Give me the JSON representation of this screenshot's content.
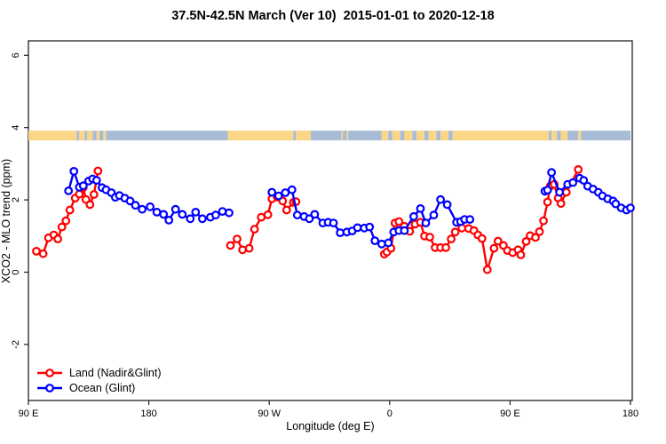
{
  "title": "37.5N-42.5N March (Ver 10)  2015-01-01 to 2020-12-18",
  "legend": {
    "items": [
      {
        "label": "Land (Nadir&Glint)",
        "color": "#ff0000"
      },
      {
        "label": "Ocean (Glint)",
        "color": "#0000ff"
      }
    ]
  },
  "chart_data": {
    "type": "line",
    "title": "37.5N-42.5N March (Ver 10)  2015-01-01 to 2020-12-18",
    "xlabel": "Longitude (deg E)",
    "ylabel": "XCO2 - MLO trend (ppm)",
    "grid": false,
    "legend_position": "bottom-left-inside",
    "x_axis": {
      "note": "longitude wraps eastward; axis position in deg east of map start (90E=90 ... 180=540)",
      "range": [
        90,
        540
      ],
      "ticks": [
        {
          "u": 90,
          "label": "90 E"
        },
        {
          "u": 180,
          "label": "180"
        },
        {
          "u": 270,
          "label": "90 W"
        },
        {
          "u": 360,
          "label": "0"
        },
        {
          "u": 450,
          "label": "90 E"
        },
        {
          "u": 540,
          "label": "180"
        }
      ]
    },
    "y_axis": {
      "range": [
        -3.55,
        6.4
      ],
      "ticks": [
        -2,
        0,
        2,
        4,
        6
      ]
    },
    "marker": {
      "shape": "open-circle",
      "radius": 3.8,
      "stroke_width": 2.2,
      "line_width": 2.4
    },
    "land_ocean_strip": {
      "y_value": 3.78,
      "land_color": "#fad688",
      "ocean_color": "#a8bcd8",
      "segments": [
        [
          90,
          126,
          "land"
        ],
        [
          126,
          128,
          "ocean"
        ],
        [
          128,
          132,
          "land"
        ],
        [
          132,
          134,
          "ocean"
        ],
        [
          134,
          138,
          "land"
        ],
        [
          138,
          141,
          "ocean"
        ],
        [
          141,
          143,
          "land"
        ],
        [
          143,
          146,
          "ocean"
        ],
        [
          146,
          148,
          "land"
        ],
        [
          148,
          239,
          "ocean"
        ],
        [
          239,
          288,
          "land"
        ],
        [
          288,
          290,
          "ocean"
        ],
        [
          290,
          301,
          "land"
        ],
        [
          301,
          324,
          "ocean"
        ],
        [
          324,
          325,
          "land"
        ],
        [
          325,
          328,
          "ocean"
        ],
        [
          328,
          329,
          "land"
        ],
        [
          329,
          354,
          "ocean"
        ],
        [
          354,
          359,
          "land"
        ],
        [
          359,
          362,
          "ocean"
        ],
        [
          362,
          368,
          "land"
        ],
        [
          368,
          371,
          "ocean"
        ],
        [
          371,
          377,
          "land"
        ],
        [
          377,
          380,
          "ocean"
        ],
        [
          380,
          386,
          "land"
        ],
        [
          386,
          389,
          "ocean"
        ],
        [
          389,
          395,
          "land"
        ],
        [
          395,
          398,
          "ocean"
        ],
        [
          398,
          404,
          "land"
        ],
        [
          404,
          407,
          "ocean"
        ],
        [
          407,
          479,
          "land"
        ],
        [
          479,
          481,
          "ocean"
        ],
        [
          481,
          485,
          "land"
        ],
        [
          485,
          488,
          "ocean"
        ],
        [
          488,
          493,
          "land"
        ],
        [
          493,
          501,
          "ocean"
        ],
        [
          501,
          503,
          "land"
        ],
        [
          503,
          540,
          "ocean"
        ]
      ]
    },
    "series": [
      {
        "name": "Land (Nadir&Glint)",
        "color": "#ff0000",
        "segments": [
          [
            [
              96,
              0.58
            ],
            [
              101,
              0.51
            ],
            [
              105,
              0.95
            ],
            [
              109,
              1.03
            ],
            [
              112,
              0.92
            ],
            [
              115,
              1.25
            ],
            [
              118,
              1.42
            ],
            [
              121,
              1.72
            ],
            [
              125,
              2.05
            ],
            [
              128,
              2.16
            ],
            [
              131,
              2.34
            ],
            [
              133,
              2.01
            ],
            [
              136,
              1.87
            ],
            [
              139,
              2.15
            ],
            [
              142,
              2.8
            ]
          ],
          [
            [
              241,
              0.74
            ],
            [
              246,
              0.92
            ],
            [
              250,
              0.62
            ],
            [
              255,
              0.66
            ],
            [
              259,
              1.19
            ],
            [
              264,
              1.52
            ],
            [
              269,
              1.59
            ],
            [
              272,
              2.03
            ],
            [
              276,
              2.08
            ],
            [
              280,
              1.97
            ],
            [
              283,
              1.72
            ],
            [
              288,
              1.93
            ],
            [
              290,
              1.95
            ]
          ],
          [
            [
              356,
              0.5
            ],
            [
              358,
              0.56
            ],
            [
              361,
              0.66
            ],
            [
              364,
              1.36
            ],
            [
              367,
              1.4
            ],
            [
              371,
              1.27
            ],
            [
              375,
              1.13
            ],
            [
              379,
              1.33
            ],
            [
              383,
              1.38
            ],
            [
              386,
              1.0
            ],
            [
              390,
              0.97
            ],
            [
              394,
              0.68
            ],
            [
              398,
              0.68
            ],
            [
              402,
              0.68
            ],
            [
              406,
              0.92
            ],
            [
              409,
              1.11
            ],
            [
              414,
              1.22
            ],
            [
              419,
              1.21
            ],
            [
              423,
              1.15
            ],
            [
              426,
              1.03
            ],
            [
              429,
              0.93
            ],
            [
              433,
              0.07
            ],
            [
              438,
              0.66
            ],
            [
              441,
              0.86
            ],
            [
              445,
              0.74
            ],
            [
              448,
              0.6
            ],
            [
              452,
              0.54
            ],
            [
              456,
              0.62
            ],
            [
              458,
              0.48
            ],
            [
              462,
              0.85
            ],
            [
              465,
              1.01
            ],
            [
              469,
              0.96
            ],
            [
              472,
              1.12
            ],
            [
              475,
              1.42
            ],
            [
              478,
              1.94
            ],
            [
              480,
              2.38
            ],
            [
              483,
              2.43
            ],
            [
              486,
              2.05
            ],
            [
              488,
              1.9
            ],
            [
              492,
              2.21
            ],
            [
              501,
              2.84
            ]
          ]
        ]
      },
      {
        "name": "Ocean (Glint)",
        "color": "#0000ff",
        "segments": [
          [
            [
              120,
              2.25
            ],
            [
              124,
              2.79
            ],
            [
              128,
              2.35
            ],
            [
              131,
              2.39
            ],
            [
              135,
              2.52
            ],
            [
              138,
              2.58
            ],
            [
              141,
              2.54
            ],
            [
              145,
              2.34
            ],
            [
              148,
              2.28
            ],
            [
              152,
              2.2
            ],
            [
              155,
              2.07
            ],
            [
              158,
              2.12
            ],
            [
              162,
              2.05
            ],
            [
              166,
              1.97
            ],
            [
              170,
              1.85
            ],
            [
              175,
              1.74
            ],
            [
              181,
              1.81
            ],
            [
              186,
              1.66
            ],
            [
              191,
              1.6
            ],
            [
              195,
              1.44
            ],
            [
              200,
              1.74
            ],
            [
              205,
              1.6
            ],
            [
              211,
              1.48
            ],
            [
              215,
              1.66
            ],
            [
              220,
              1.48
            ],
            [
              226,
              1.52
            ],
            [
              230,
              1.58
            ],
            [
              235,
              1.68
            ],
            [
              240,
              1.64
            ]
          ],
          [
            [
              272,
              2.21
            ],
            [
              277,
              2.11
            ],
            [
              282,
              2.2
            ],
            [
              287,
              2.28
            ],
            [
              291,
              1.58
            ],
            [
              296,
              1.54
            ],
            [
              300,
              1.48
            ],
            [
              304,
              1.6
            ],
            [
              310,
              1.36
            ],
            [
              314,
              1.38
            ],
            [
              318,
              1.36
            ],
            [
              323,
              1.09
            ],
            [
              328,
              1.11
            ],
            [
              332,
              1.14
            ],
            [
              336,
              1.23
            ],
            [
              341,
              1.22
            ],
            [
              345,
              1.25
            ],
            [
              349,
              0.87
            ],
            [
              354,
              0.78
            ],
            [
              359,
              0.81
            ],
            [
              363,
              1.11
            ],
            [
              367,
              1.15
            ],
            [
              371,
              1.15
            ],
            [
              378,
              1.54
            ],
            [
              383,
              1.76
            ],
            [
              387,
              1.36
            ],
            [
              393,
              1.58
            ],
            [
              398,
              2.01
            ],
            [
              403,
              1.87
            ],
            [
              410,
              1.38
            ],
            [
              413,
              1.4
            ],
            [
              416,
              1.46
            ],
            [
              420,
              1.46
            ]
          ],
          [
            [
              476,
              2.24
            ],
            [
              478,
              2.27
            ],
            [
              481,
              2.76
            ],
            [
              487,
              2.21
            ],
            [
              493,
              2.43
            ],
            [
              497,
              2.48
            ],
            [
              502,
              2.6
            ],
            [
              505,
              2.54
            ],
            [
              508,
              2.38
            ],
            [
              512,
              2.3
            ],
            [
              516,
              2.21
            ],
            [
              519,
              2.11
            ],
            [
              523,
              2.03
            ],
            [
              527,
              1.97
            ],
            [
              529,
              1.89
            ],
            [
              533,
              1.78
            ],
            [
              537,
              1.72
            ],
            [
              540,
              1.78
            ]
          ]
        ]
      }
    ]
  }
}
